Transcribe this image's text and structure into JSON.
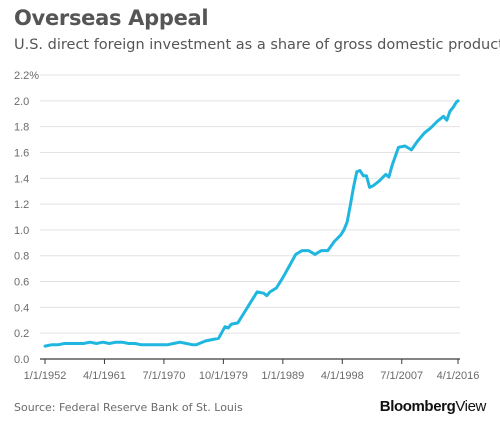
{
  "chart_data": {
    "type": "line",
    "title": "Overseas Appeal",
    "subtitle": "U.S. direct foreign investment as a share of gross domestic product.",
    "xlabel": "",
    "ylabel": "",
    "ylim": [
      0,
      2.2
    ],
    "yticks": [
      {
        "value": 0.0,
        "label": "0.0"
      },
      {
        "value": 0.2,
        "label": "0.2"
      },
      {
        "value": 0.4,
        "label": "0.4"
      },
      {
        "value": 0.6,
        "label": "0.6"
      },
      {
        "value": 0.8,
        "label": "0.8"
      },
      {
        "value": 1.0,
        "label": "1.0"
      },
      {
        "value": 1.2,
        "label": "1.2"
      },
      {
        "value": 1.4,
        "label": "1.4"
      },
      {
        "value": 1.6,
        "label": "1.6"
      },
      {
        "value": 1.8,
        "label": "1.8"
      },
      {
        "value": 2.0,
        "label": "2.0"
      },
      {
        "value": 2.2,
        "label": "2.2%"
      }
    ],
    "xlim": [
      1952.0,
      2016.25
    ],
    "xticks": [
      {
        "value": 1952.0,
        "label": "1/1/1952"
      },
      {
        "value": 1961.25,
        "label": "4/1/1961"
      },
      {
        "value": 1970.5,
        "label": "7/1/1970"
      },
      {
        "value": 1979.75,
        "label": "10/1/1979"
      },
      {
        "value": 1989.0,
        "label": "1/1/1989"
      },
      {
        "value": 1998.25,
        "label": "4/1/1998"
      },
      {
        "value": 2007.5,
        "label": "7/1/2007"
      },
      {
        "value": 2016.25,
        "label": "4/1/2016"
      }
    ],
    "grid": true,
    "series": [
      {
        "color": "#1fb6e0",
        "x": [
          1952.0,
          1953.0,
          1954.0,
          1955.0,
          1956.0,
          1957.0,
          1958.0,
          1959.0,
          1960.0,
          1961.0,
          1962.0,
          1963.0,
          1964.0,
          1965.0,
          1966.0,
          1967.0,
          1968.0,
          1969.0,
          1970.0,
          1971.0,
          1972.0,
          1973.0,
          1974.0,
          1975.0,
          1975.5,
          1976.0,
          1977.0,
          1978.0,
          1979.0,
          1980.0,
          1980.5,
          1981.0,
          1982.0,
          1983.0,
          1984.0,
          1985.0,
          1986.0,
          1986.5,
          1987.0,
          1988.0,
          1989.0,
          1990.0,
          1991.0,
          1992.0,
          1992.5,
          1993.0,
          1994.0,
          1995.0,
          1996.0,
          1997.0,
          1998.0,
          1998.5,
          1999.0,
          1999.5,
          2000.0,
          2000.5,
          2001.0,
          2001.5,
          2002.0,
          2002.5,
          2003.0,
          2004.0,
          2005.0,
          2005.5,
          2006.0,
          2007.0,
          2008.0,
          2009.0,
          2010.0,
          2011.0,
          2012.0,
          2013.0,
          2014.0,
          2014.5,
          2015.0,
          2015.5,
          2016.0,
          2016.25
        ],
        "y": [
          0.1,
          0.11,
          0.11,
          0.12,
          0.12,
          0.12,
          0.12,
          0.13,
          0.12,
          0.13,
          0.12,
          0.13,
          0.13,
          0.12,
          0.12,
          0.11,
          0.11,
          0.11,
          0.11,
          0.11,
          0.12,
          0.13,
          0.12,
          0.11,
          0.11,
          0.12,
          0.14,
          0.15,
          0.16,
          0.25,
          0.24,
          0.27,
          0.28,
          0.36,
          0.44,
          0.52,
          0.51,
          0.49,
          0.52,
          0.55,
          0.63,
          0.72,
          0.81,
          0.84,
          0.84,
          0.84,
          0.81,
          0.84,
          0.84,
          0.91,
          0.96,
          1.0,
          1.06,
          1.19,
          1.33,
          1.45,
          1.46,
          1.42,
          1.42,
          1.33,
          1.34,
          1.38,
          1.43,
          1.41,
          1.5,
          1.64,
          1.65,
          1.62,
          1.69,
          1.75,
          1.79,
          1.84,
          1.88,
          1.85,
          1.92,
          1.95,
          1.99,
          2.0
        ]
      }
    ]
  },
  "footer": {
    "source": "Source: Federal Reserve Bank of St. Louis",
    "brand_bold": "Bloomberg",
    "brand_regular": "View"
  }
}
